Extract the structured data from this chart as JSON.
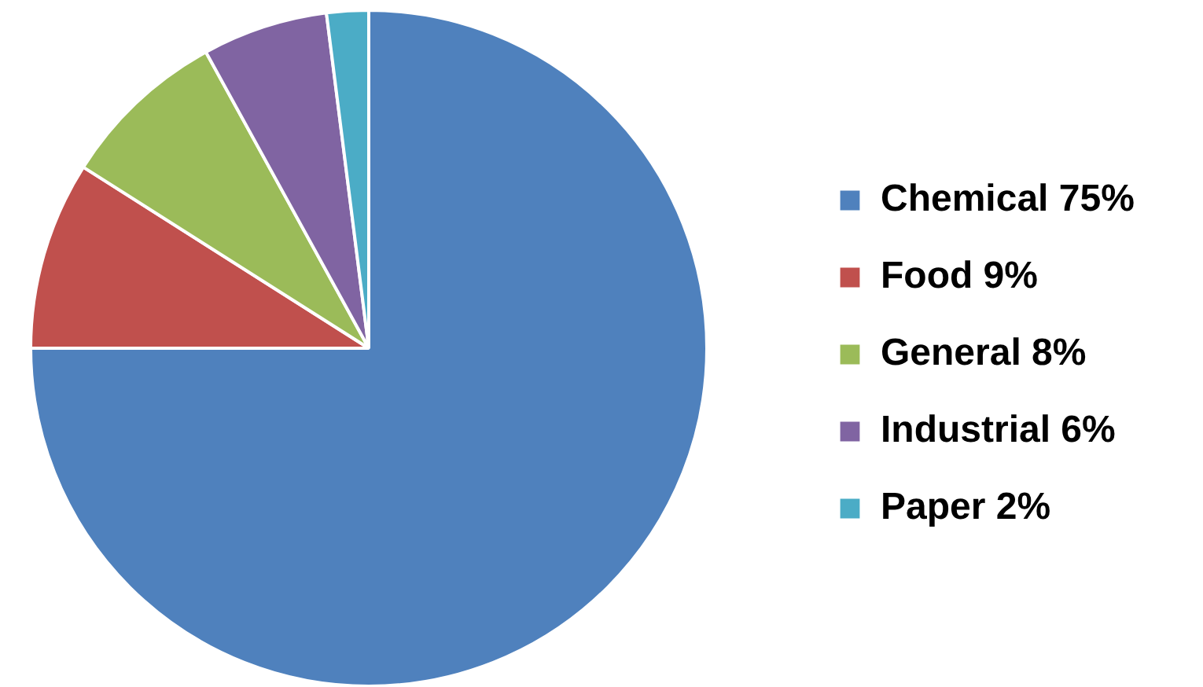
{
  "chart_data": {
    "type": "pie",
    "categories": [
      "Chemical 75%",
      "Food 9%",
      "General 8%",
      "Industrial 6%",
      "Paper 2%"
    ],
    "values": [
      75,
      9,
      8,
      6,
      2
    ],
    "colors": [
      "#4f81bd",
      "#c0504d",
      "#9bbb59",
      "#8064a2",
      "#4bacc6"
    ],
    "legend": "right"
  }
}
